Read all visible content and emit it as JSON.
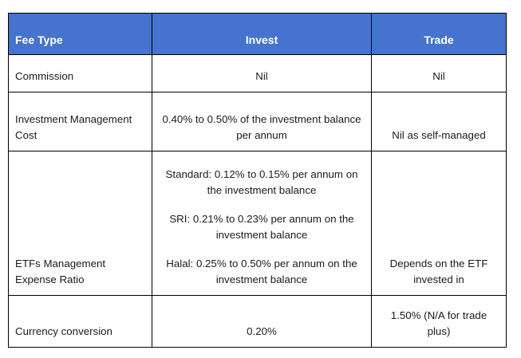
{
  "page": {
    "background_color": "#ffffff"
  },
  "table": {
    "header": {
      "bg_color": "#4573cd",
      "text_color": "#ffffff",
      "border_color": "#000000",
      "columns": [
        "Fee Type",
        "Invest",
        "Trade"
      ]
    },
    "rows": [
      {
        "fee_type": "Commission",
        "invest": [
          "Nil"
        ],
        "trade": "Nil"
      },
      {
        "fee_type": "Investment Management Cost",
        "invest": [
          "0.40% to 0.50% of the investment balance per annum"
        ],
        "trade": "Nil as self-managed"
      },
      {
        "fee_type": "ETFs Management Expense Ratio",
        "invest": [
          "Standard: 0.12% to 0.15% per annum on the investment balance",
          "SRI: 0.21% to 0.23% per annum on the investment balance",
          "Halal: 0.25% to 0.50% per annum on the investment balance"
        ],
        "trade": "Depends on the ETF invested in"
      },
      {
        "fee_type": "Currency conversion",
        "invest": [
          "0.20%"
        ],
        "trade": "1.50% (N/A for trade plus)"
      }
    ]
  }
}
